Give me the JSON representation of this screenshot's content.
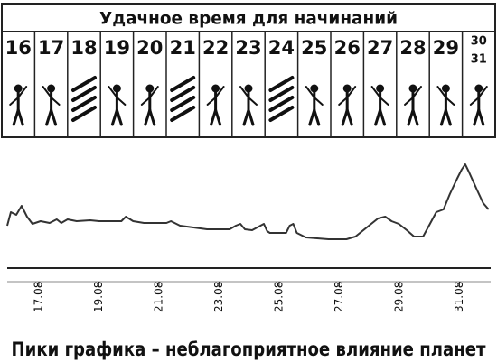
{
  "header": {
    "title": "Удачное время для начинаний",
    "days": [
      16,
      17,
      18,
      19,
      20,
      21,
      22,
      23,
      24,
      25,
      26,
      27,
      28,
      29,
      [
        30,
        31
      ]
    ]
  },
  "chart_data": {
    "type": "line",
    "x": [
      15.95,
      16.07,
      16.25,
      16.43,
      16.61,
      16.79,
      17.06,
      17.36,
      17.6,
      17.75,
      17.96,
      18.26,
      18.71,
      19.01,
      19.75,
      19.9,
      20.14,
      20.5,
      21.25,
      21.4,
      21.7,
      22.6,
      23.35,
      23.56,
      23.71,
      23.86,
      24.1,
      24.49,
      24.6,
      24.69,
      25.23,
      25.35,
      25.47,
      25.59,
      25.89,
      26.64,
      27.24,
      27.54,
      27.99,
      28.29,
      28.53,
      28.74,
      28.98,
      29.25,
      29.49,
      29.79,
      30.02,
      30.23,
      30.47,
      30.68,
      30.92,
      31.07,
      31.19,
      31.31,
      31.58,
      31.79,
      31.97
    ],
    "values": [
      47,
      62,
      59,
      69,
      57,
      49,
      52,
      50,
      54,
      50,
      54,
      52,
      53,
      52,
      52,
      57,
      52,
      50,
      50,
      52,
      47,
      43,
      43,
      47,
      49,
      43,
      42,
      49,
      41,
      39,
      39,
      47,
      49,
      39,
      34,
      32,
      32,
      35,
      47,
      55,
      57,
      52,
      49,
      42,
      35,
      35,
      49,
      62,
      65,
      82,
      99,
      109,
      115,
      107,
      87,
      72,
      65
    ],
    "color": "#333333",
    "xlim": [
      15.74,
      32.22
    ],
    "ylim": [
      0,
      120
    ],
    "xticks": [
      {
        "value": 17,
        "label": "17.08"
      },
      {
        "value": 19,
        "label": "19.08"
      },
      {
        "value": 21,
        "label": "21.08"
      },
      {
        "value": 23,
        "label": "23.08"
      },
      {
        "value": 25,
        "label": "25.08"
      },
      {
        "value": 27,
        "label": "27.08"
      },
      {
        "value": 29,
        "label": "29.08"
      },
      {
        "value": 31,
        "label": "31.08"
      }
    ],
    "caption": "Пики графика – неблагоприятное влияние планет"
  }
}
